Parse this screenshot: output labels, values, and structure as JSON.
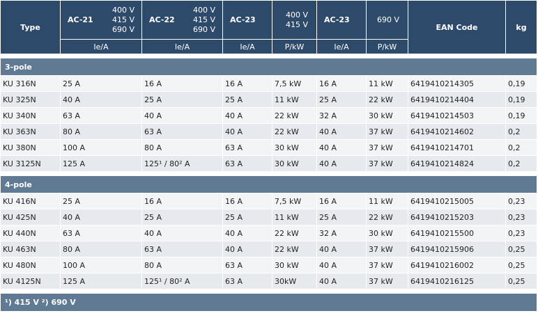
{
  "header": {
    "type": "Type",
    "ac21": "AC-21",
    "ac21_volts": [
      "400 V",
      "415 V",
      "690 V"
    ],
    "ac22": "AC-22",
    "ac22_volts": [
      "400 V",
      "415 V",
      "690 V"
    ],
    "ac23a": "AC-23",
    "volts_400_415": [
      "400 V",
      "415 V"
    ],
    "ac23b": "AC-23",
    "volts_690": "690 V",
    "ean": "EAN Code",
    "kg": "kg",
    "sub": [
      "Ie/A",
      "Ie/A",
      "Ie/A",
      "P/kW",
      "Ie/A",
      "P/kW"
    ]
  },
  "groups": [
    {
      "label": "3-pole",
      "rows": [
        [
          "KU 316N",
          "25 A",
          "16 A",
          "16 A",
          "7,5 kW",
          "16 A",
          "11 kW",
          "6419410214305",
          "0,19"
        ],
        [
          "KU 325N",
          "40 A",
          "25 A",
          "25 A",
          "11 kW",
          "25 A",
          "22 kW",
          "6419410214404",
          "0,19"
        ],
        [
          "KU 340N",
          "63 A",
          "40 A",
          "40 A",
          "22 kW",
          "32 A",
          "30 kW",
          "6419410214503",
          "0,19"
        ],
        [
          "KU 363N",
          "80 A",
          "63 A",
          "40 A",
          "22 kW",
          "40 A",
          "37 kW",
          "6419410214602",
          "0,2"
        ],
        [
          "KU 380N",
          "100 A",
          "80 A",
          "63 A",
          "30 kW",
          "40 A",
          "37 kW",
          "6419410214701",
          "0,2"
        ],
        [
          "KU 3125N",
          "125 A",
          "125¹ / 80² A",
          "63 A",
          "30 kW",
          "40 A",
          "37 kW",
          "6419410214824",
          "0,2"
        ]
      ]
    },
    {
      "label": "4-pole",
      "rows": [
        [
          "KU 416N",
          "25 A",
          "16 A",
          "16 A",
          "7,5 kW",
          "16 A",
          "11 kW",
          "6419410215005",
          "0,23"
        ],
        [
          "KU 425N",
          "40 A",
          "25 A",
          "25 A",
          "11 kW",
          "25 A",
          "22 kW",
          "6419410215203",
          "0,23"
        ],
        [
          "KU 440N",
          "63 A",
          "40 A",
          "40 A",
          "22 kW",
          "32 A",
          "30 kW",
          "6419410215500",
          "0,23"
        ],
        [
          "KU 463N",
          "80 A",
          "63 A",
          "40 A",
          "22 kW",
          "40 A",
          "37 kW",
          "6419410215906",
          "0,25"
        ],
        [
          "KU 480N",
          "100 A",
          "80 A",
          "63 A",
          "30 kW",
          "40 A",
          "37 kW",
          "6419410216002",
          "0,25"
        ],
        [
          "KU 4125N",
          "125 A",
          "125¹ / 80² A",
          "63 A",
          "30kW",
          "40 A",
          "37 kW",
          "6419410216125",
          "0,25"
        ]
      ]
    }
  ],
  "footnote": "¹) 415 V ²) 690 V"
}
